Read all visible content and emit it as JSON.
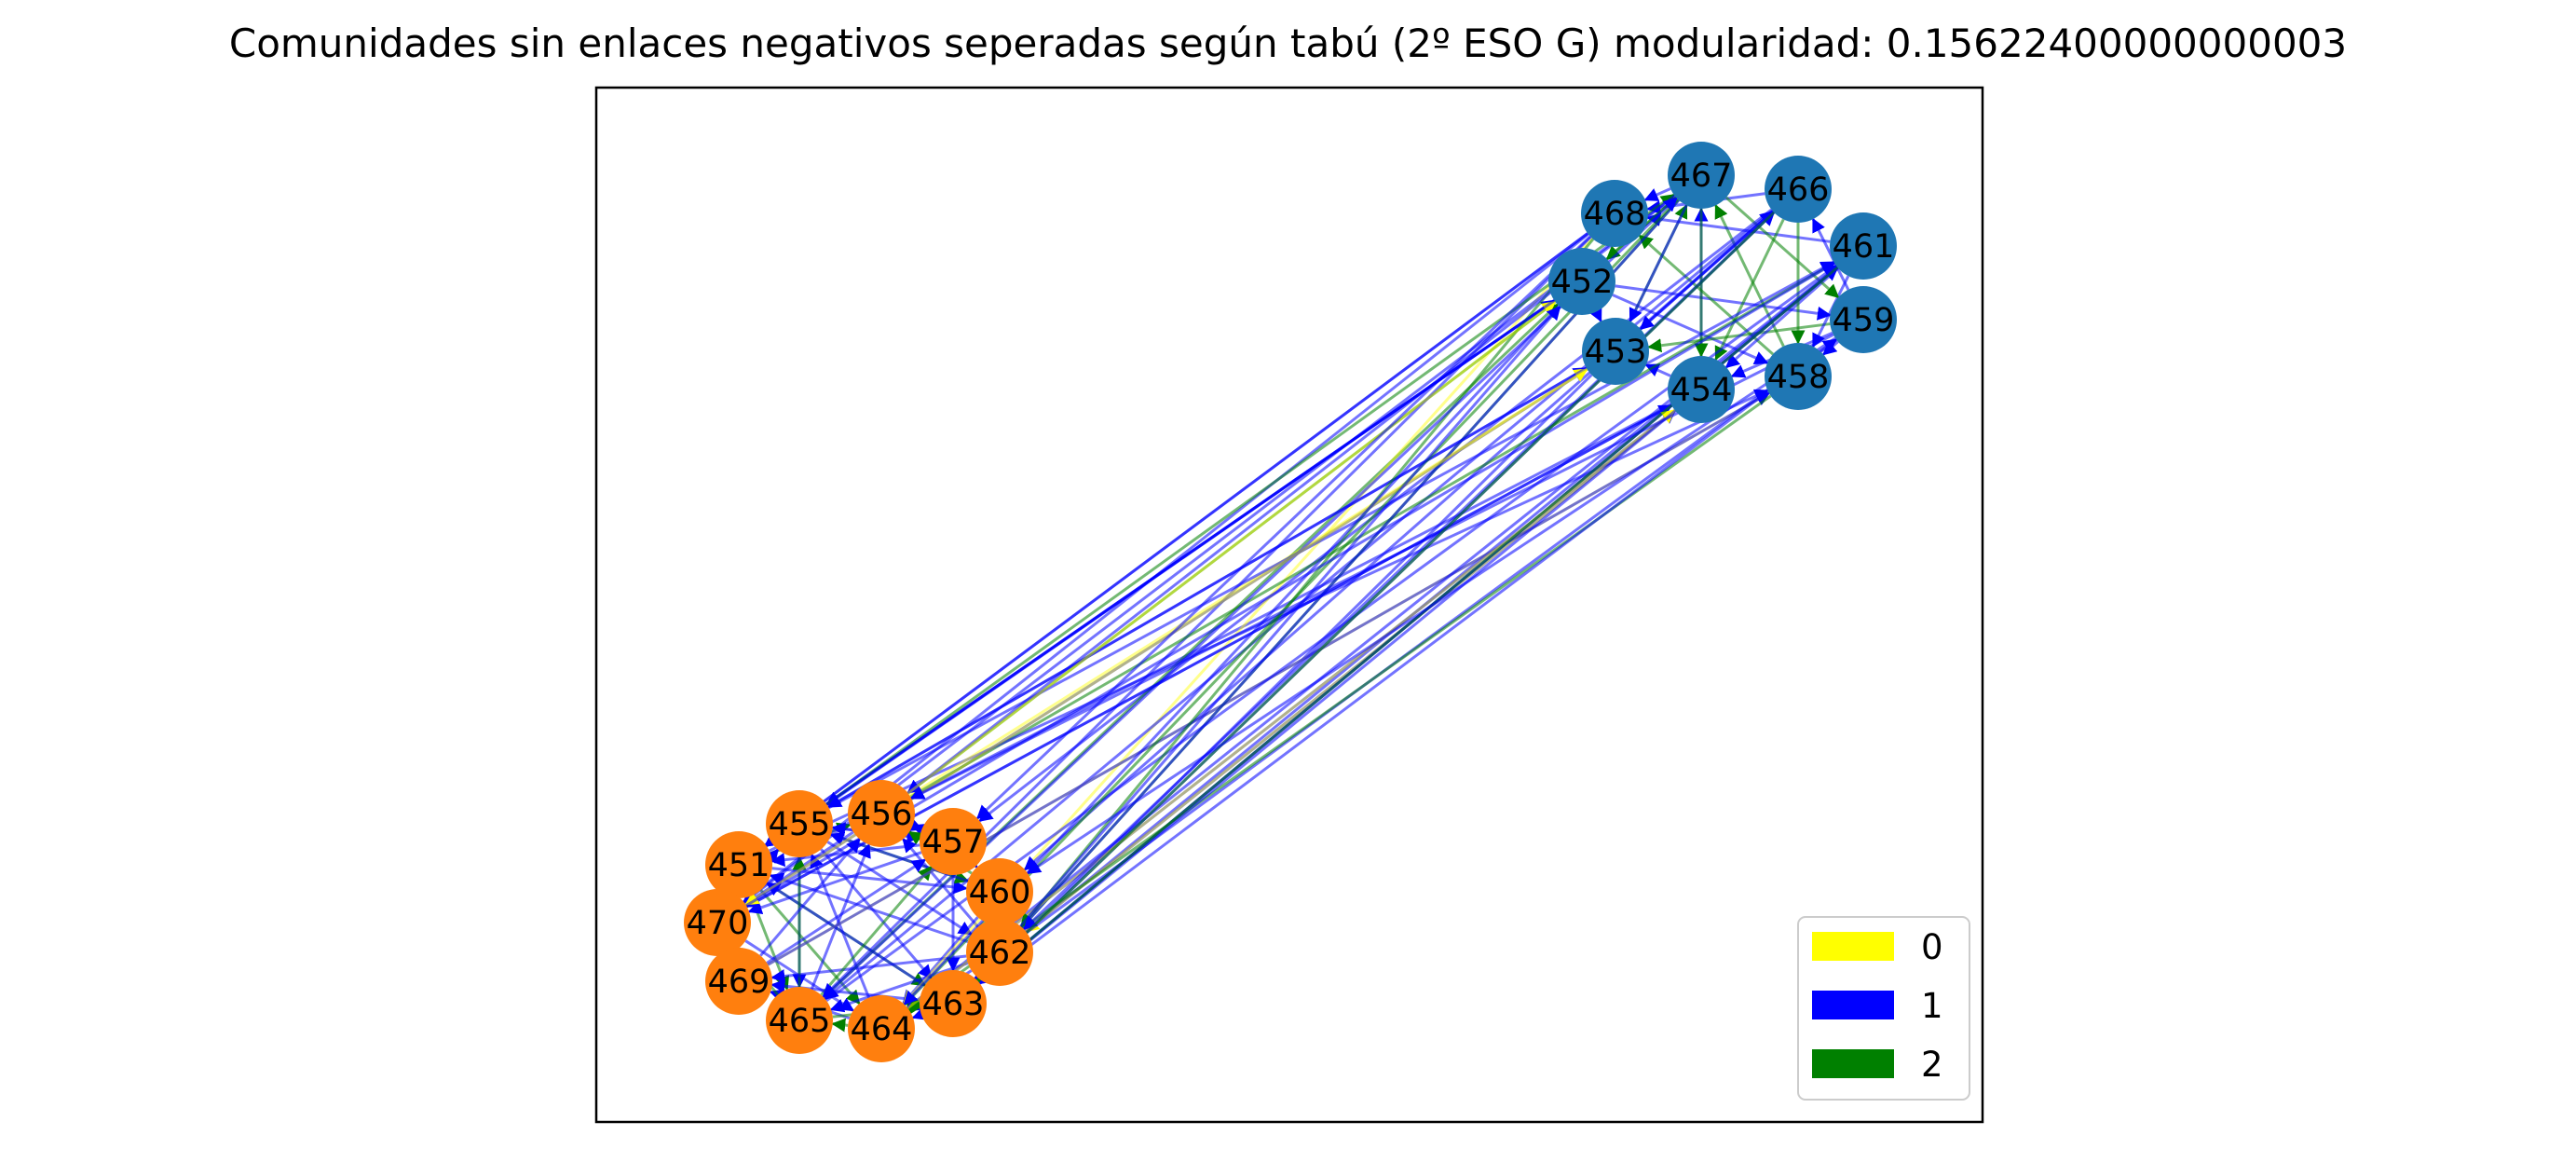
{
  "title": "Comunidades sin enlaces negativos seperadas según tabú (2º ESO G) modularidad: 0.15622400000000003",
  "legend": [
    {
      "label": "0",
      "color": "#ffff00"
    },
    {
      "label": "1",
      "color": "#0000ff"
    },
    {
      "label": "2",
      "color": "#008000"
    }
  ],
  "community_colors": {
    "a": "#1f77b4",
    "b": "#ff7f0e"
  },
  "nodes": [
    {
      "id": "467",
      "community": "a"
    },
    {
      "id": "466",
      "community": "a"
    },
    {
      "id": "468",
      "community": "a"
    },
    {
      "id": "461",
      "community": "a"
    },
    {
      "id": "452",
      "community": "a"
    },
    {
      "id": "459",
      "community": "a"
    },
    {
      "id": "453",
      "community": "a"
    },
    {
      "id": "458",
      "community": "a"
    },
    {
      "id": "454",
      "community": "a"
    },
    {
      "id": "455",
      "community": "b"
    },
    {
      "id": "456",
      "community": "b"
    },
    {
      "id": "457",
      "community": "b"
    },
    {
      "id": "451",
      "community": "b"
    },
    {
      "id": "460",
      "community": "b"
    },
    {
      "id": "470",
      "community": "b"
    },
    {
      "id": "462",
      "community": "b"
    },
    {
      "id": "469",
      "community": "b"
    },
    {
      "id": "463",
      "community": "b"
    },
    {
      "id": "465",
      "community": "b"
    },
    {
      "id": "464",
      "community": "b"
    }
  ]
}
